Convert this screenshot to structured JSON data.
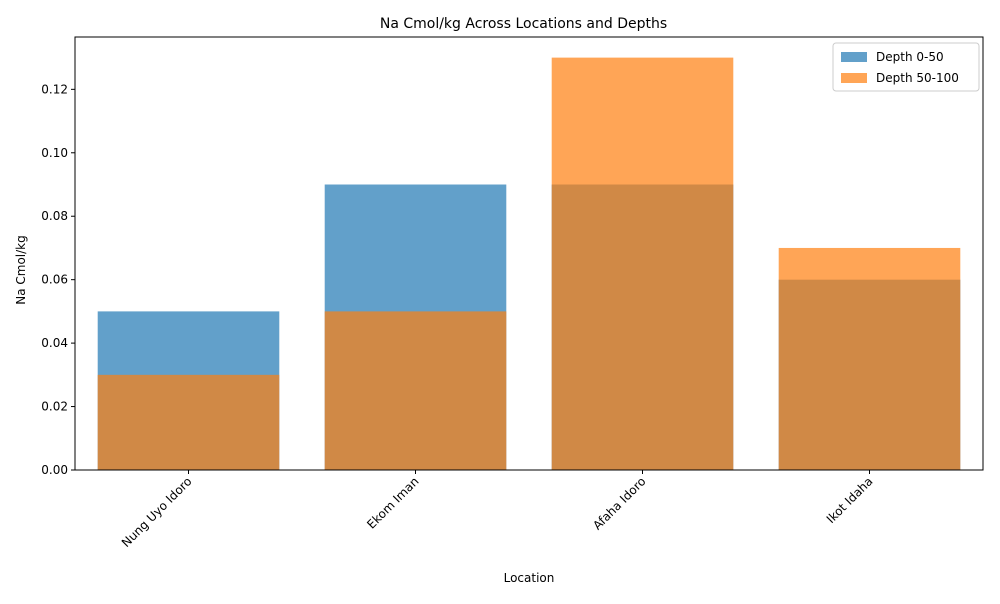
{
  "chart_data": {
    "type": "bar",
    "title": "Na Cmol/kg Across Locations and Depths",
    "xlabel": "Location",
    "ylabel": "Na Cmol/kg",
    "categories": [
      "Nung Uyo Idoro",
      "Ekom Iman",
      "Afaha Idoro",
      "Ikot Idaha"
    ],
    "series": [
      {
        "name": "Depth 0-50",
        "values": [
          0.05,
          0.09,
          0.09,
          0.06
        ],
        "color": "#1f77b4",
        "opacity": 0.7
      },
      {
        "name": "Depth 50-100",
        "values": [
          0.03,
          0.05,
          0.13,
          0.07
        ],
        "color": "#ff7f0e",
        "opacity": 0.7
      }
    ],
    "ylim": [
      0,
      0.1365
    ],
    "yticks": [
      "0.00",
      "0.02",
      "0.04",
      "0.06",
      "0.08",
      "0.10",
      "0.12"
    ],
    "grid": false,
    "legend_position": "top-right",
    "overlapping_bars": true
  }
}
